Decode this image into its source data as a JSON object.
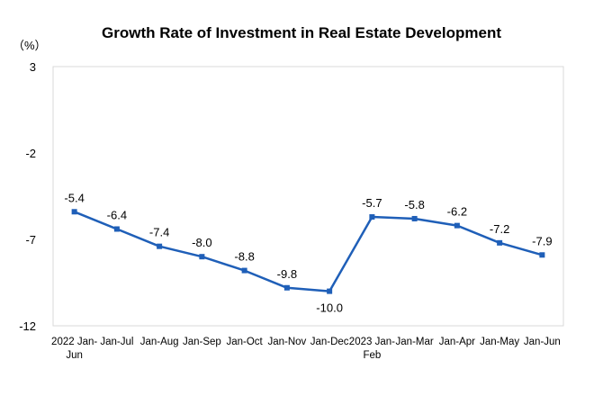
{
  "chart_data": {
    "type": "line",
    "title": "Growth Rate of Investment in Real Estate Development",
    "unit_label": "（%）",
    "ylim": [
      -12,
      3
    ],
    "yticks": [
      3,
      -2,
      -7,
      -12
    ],
    "grid": false,
    "categories": [
      [
        "2022 Jan-",
        "Jun"
      ],
      [
        "Jan-Jul"
      ],
      [
        "Jan-Aug"
      ],
      [
        "Jan-Sep"
      ],
      [
        "Jan-Oct"
      ],
      [
        "Jan-Nov"
      ],
      [
        "Jan-Dec"
      ],
      [
        "2023 Jan-",
        "Feb"
      ],
      [
        "Jan-Mar"
      ],
      [
        "Jan-Apr"
      ],
      [
        "Jan-May"
      ],
      [
        "Jan-Jun"
      ]
    ],
    "series": [
      {
        "values": [
          -5.4,
          -6.4,
          -7.4,
          -8.0,
          -8.8,
          -9.8,
          -10.0,
          -5.7,
          -5.8,
          -6.2,
          -7.2,
          -7.9
        ],
        "labels": [
          "-5.4",
          "-6.4",
          "-7.4",
          "-8.0",
          "-8.8",
          "-9.8",
          "-10.0",
          "-5.7",
          "-5.8",
          "-6.2",
          "-7.2",
          "-7.9"
        ],
        "label_positions": [
          "above",
          "above",
          "above",
          "above",
          "above",
          "above",
          "below",
          "above",
          "above",
          "above",
          "above",
          "above"
        ],
        "color": "#1F5FB8"
      }
    ]
  }
}
